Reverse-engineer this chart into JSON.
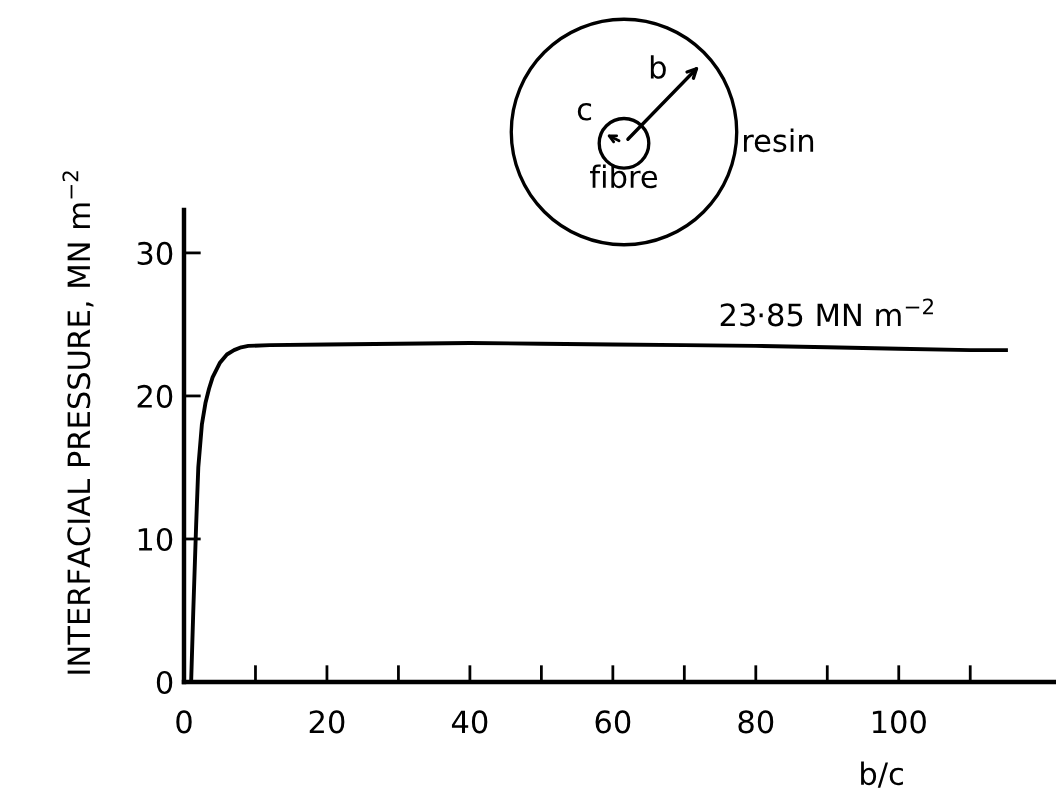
{
  "chart_data": {
    "type": "line",
    "xlabel": "b/c",
    "ylabel": "INTERFACIAL PRESSURE, MN m$^{−2}$",
    "x": [
      1,
      1.3,
      1.7,
      2,
      2.5,
      3,
      3.5,
      4,
      5,
      6,
      7,
      8,
      9,
      12,
      20,
      30,
      40,
      50,
      60,
      70,
      80,
      90,
      100,
      110,
      115
    ],
    "series": [
      {
        "color": "#000000",
        "values": [
          0,
          5,
          11,
          15,
          18,
          19.5,
          20.5,
          21.3,
          22.3,
          22.9,
          23.2,
          23.4,
          23.5,
          23.55,
          23.6,
          23.65,
          23.7,
          23.65,
          23.6,
          23.55,
          23.5,
          23.4,
          23.3,
          23.2,
          23.2
        ]
      }
    ],
    "xlim": [
      0,
      122
    ],
    "ylim": [
      0,
      33
    ],
    "xticks": [
      0,
      {
        "value": 10,
        "label": null
      },
      20,
      {
        "value": 30,
        "label": null
      },
      40,
      {
        "value": 50,
        "label": null
      },
      60,
      {
        "value": 70,
        "label": null
      },
      80,
      {
        "value": 90,
        "label": null
      },
      100,
      {
        "value": 110,
        "label": null
      }
    ],
    "yticks": [
      0,
      10,
      20,
      30
    ],
    "grid": false,
    "marker": "none",
    "line_style": "solid",
    "annotations": [
      {
        "text": "23·85 MN m$^{−2}$",
        "x": 90,
        "y": 23.85
      },
      "b",
      "c",
      "fibre",
      "resin"
    ]
  }
}
